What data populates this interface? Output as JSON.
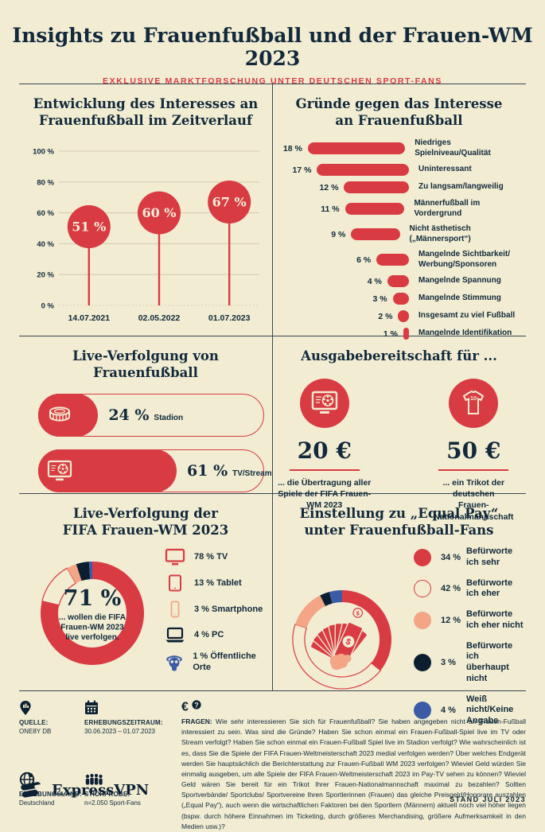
{
  "header": {
    "title": "Insights zu Frauenfußball und der Frauen-WM 2023",
    "subtitle": "EXKLUSIVE MARKTFORSCHUNG UNTER DEUTSCHEN SPORT-FANS"
  },
  "colors": {
    "bg": "#f1ecd2",
    "red": "#d93b43",
    "navy": "#12293b",
    "peach": "#f3a585",
    "blue": "#3b5ba7",
    "dark": "#0b1e30",
    "grid": "#d5cdb2",
    "bubble_text": "#f5f0da"
  },
  "chart_data": [
    {
      "id": "interest_timeline",
      "type": "line",
      "style": "lollipop",
      "title": "Entwicklung des Interesses an\nFrauenfußball im Zeitverlauf",
      "categories": [
        "14.07.2021",
        "02.05.2022",
        "01.07.2023"
      ],
      "values": [
        51,
        60,
        67
      ],
      "unit": "%",
      "ylim": [
        0,
        100
      ],
      "yticks": [
        0,
        20,
        40,
        60,
        80,
        100
      ],
      "grid": true,
      "legend_position": "none"
    },
    {
      "id": "reasons_against_interest",
      "type": "bar",
      "orientation": "horizontal",
      "title": "Gründe gegen das Interesse\nan Frauenfußball",
      "categories": [
        "Niedriges Spielniveau/Qualität",
        "Uninteressant",
        "Zu langsam/langweilig",
        "Männerfußball im Vordergrund",
        "Nicht ästhetisch („Männersport“)",
        "Mangelnde Sichtbarkeit/\nWerbung/Sponsoren",
        "Mangelnde Spannung",
        "Mangelnde Stimmung",
        "Insgesamt zu viel Fußball",
        "Mangelnde Identifikation"
      ],
      "values": [
        18,
        17,
        12,
        11,
        9,
        6,
        4,
        3,
        2,
        1
      ],
      "unit": "%",
      "xlim": [
        0,
        18
      ]
    },
    {
      "id": "live_following",
      "type": "bar",
      "orientation": "horizontal",
      "title": "Live-Verfolgung von Frauenfußball",
      "categories": [
        "Stadion",
        "TV/Stream"
      ],
      "values": [
        24,
        61
      ],
      "unit": "%",
      "icons": [
        "stadium-icon",
        "tv-football-icon"
      ]
    },
    {
      "id": "spending_willingness",
      "type": "table",
      "title": "Ausgabebereitschaft für ...",
      "items": [
        {
          "icon": "tv-football-icon",
          "value": "20 €",
          "caption": "... die Übertragung aller\nSpiele der FIFA Frauen-\nWM 2023"
        },
        {
          "icon": "jersey-icon",
          "value": "50 €",
          "caption": "... ein Trikot der deutschen\nFrauen-Nationalmannschaft"
        }
      ]
    },
    {
      "id": "wm_live_devices",
      "type": "pie",
      "title": "Live-Verfolgung der\nFIFA Frauen-WM 2023",
      "center_value": "71 %",
      "center_caption": "... wollen die FIFA\nFrauen-WM 2023\nlive verfolgen.",
      "categories": [
        "TV",
        "Tablet",
        "Smartphone",
        "PC",
        "Öffentliche Orte"
      ],
      "values": [
        78,
        13,
        3,
        4,
        1
      ],
      "unit": "%",
      "segment_styles": [
        "red",
        "outline",
        "peach",
        "dark",
        "blue"
      ],
      "legend_icons": [
        "tv-icon",
        "tablet-icon",
        "smartphone-icon",
        "pc-icon",
        "public-viewing-icon"
      ],
      "legend_position": "right"
    },
    {
      "id": "equal_pay_attitude",
      "type": "pie",
      "title": "Einstellung zu „Equal Pay“\nunter Frauenfußball-Fans",
      "categories": [
        "Befürworte ich sehr",
        "Befürworte ich eher",
        "Befürworte ich eher nicht",
        "Befürworte ich\nüberhaupt nicht",
        "Weiß nicht/Keine Angabe"
      ],
      "values": [
        34,
        42,
        12,
        3,
        4
      ],
      "unit": "%",
      "segment_styles": [
        "red",
        "outline",
        "peach",
        "dark",
        "blue"
      ],
      "center_icon": "money-fan-icon",
      "legend_position": "right"
    }
  ],
  "footer": {
    "meta": [
      {
        "icon": "map-pin-icon",
        "label": "QUELLE:",
        "value": "ONE8Y DB"
      },
      {
        "icon": "calendar-icon",
        "label": "ERHEBUNGSZEITRAUM:",
        "value": "30.06.2023 – 01.07.2023"
      },
      {
        "icon": "globe-icon",
        "label": "ERHEBUNGSLAND:",
        "value": "Deutschland"
      },
      {
        "icon": "people-icon",
        "label": "STICHPROBE:",
        "value": "n=2.050 Sport-Fans"
      }
    ],
    "questions_label": "FRAGEN:",
    "questions_text": "Wie sehr interessieren Sie sich für Frauenfußball? Sie haben angegeben nicht an Frauen-Fußball interessiert zu sein. Was sind die Gründe? Haben Sie schon einmal ein Frauen-Fußball-Spiel live im TV oder Stream verfolgt? Haben Sie schon einmal ein Frauen-Fußball Spiel live im Stadion verfolgt? Wie wahrscheinlich ist es, dass Sie die Spiele der FIFA Frauen-Weltmeisterschaft 2023 medial verfolgen werden? Über welches Endgerät werden Sie hauptsächlich die Berichterstattung zur Frauen-Fußball WM 2023 verfolgen? Wieviel Geld würden Sie einmalig ausgeben, um alle Spiele der FIFA Frauen-Weltmeisterschaft 2023 im Pay-TV sehen zu können? Wieviel Geld wären Sie bereit für ein Trikot Ihrer Frauen-Nationalmannschaft maximal zu bezahlen? Sollten Sportverbände/ Sportclubs/ Sportvereine Ihren Sportlerinnen (Frauen) das gleiche Preisgeld/Honorare auszahlen („Equal Pay“), auch wenn die wirtschaftlichen Faktoren bei den Sportlern (Männern) aktuell noch viel höher liegen (bspw. durch höhere Einnahmen im Ticketing, durch größeres Merchandising, größere Aufmerksamkeit in den Medien usw.)?",
    "brand": "ExpressVPN",
    "stand": "STAND JULI 2023"
  }
}
